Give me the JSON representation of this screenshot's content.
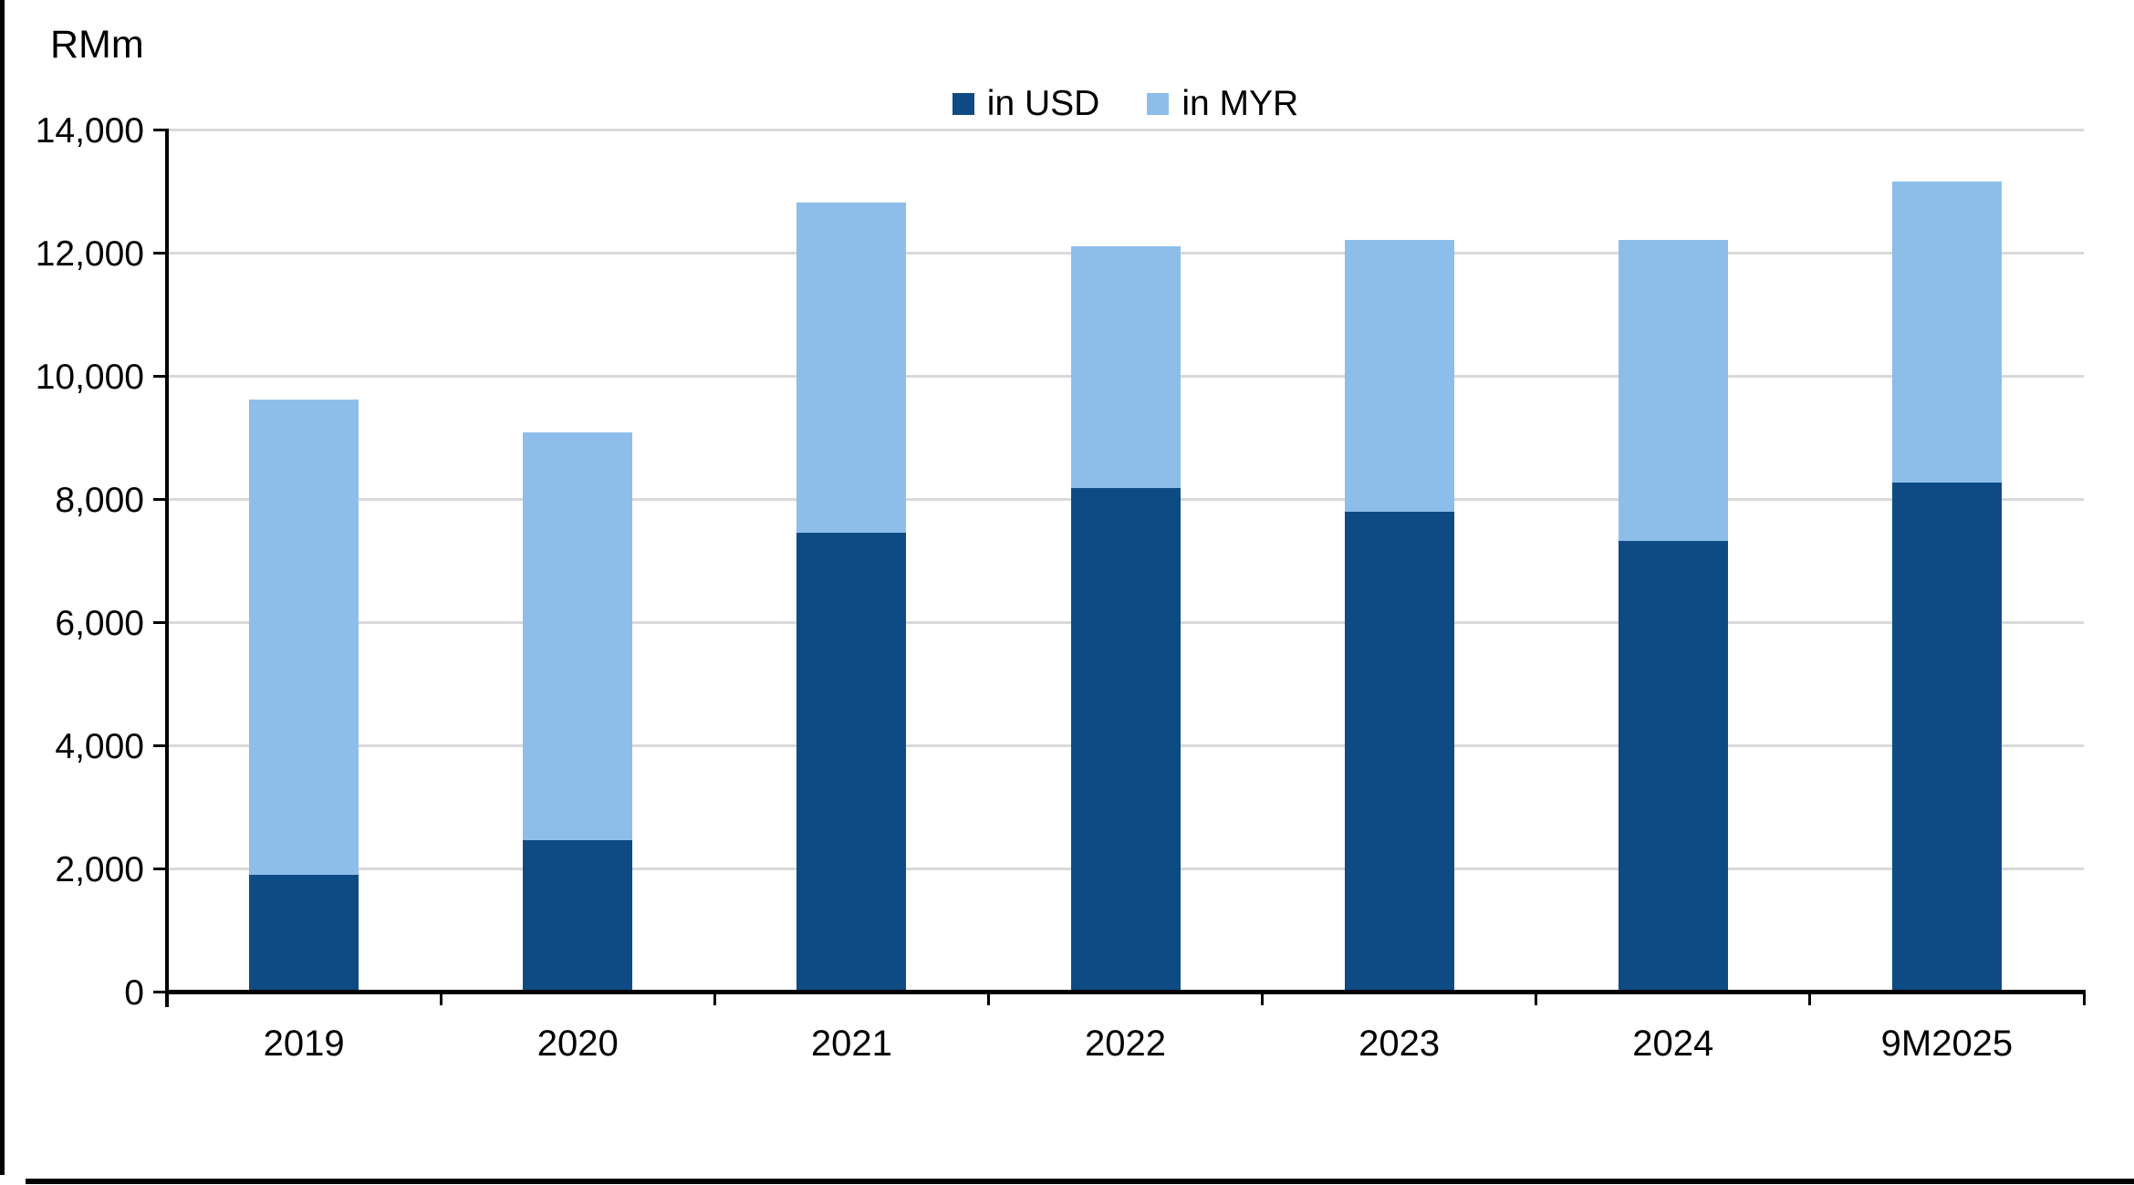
{
  "page": {
    "background": "#FFFFFF",
    "frame_color": "#000000"
  },
  "chart_data": {
    "type": "bar",
    "stacked": true,
    "title": "",
    "ylabel": "RMm",
    "xlabel": "",
    "categories": [
      "2019",
      "2020",
      "2021",
      "2022",
      "2023",
      "2024",
      "9M2025"
    ],
    "series": [
      {
        "name": "in USD",
        "color": "#0E4B85",
        "values": [
          1900,
          2470,
          7460,
          8180,
          7800,
          7330,
          8270
        ]
      },
      {
        "name": "in MYR",
        "color": "#8DBEEA",
        "values": [
          7730,
          6620,
          5370,
          3940,
          4410,
          4890,
          4890
        ]
      }
    ],
    "ylim": [
      0,
      14000
    ],
    "y_ticks": [
      0,
      2000,
      4000,
      6000,
      8000,
      10000,
      12000,
      14000
    ],
    "grid": "horizontal",
    "gridline_color": "#D9D9D9",
    "axis_color": "#000000",
    "legend_position": "top-center"
  }
}
